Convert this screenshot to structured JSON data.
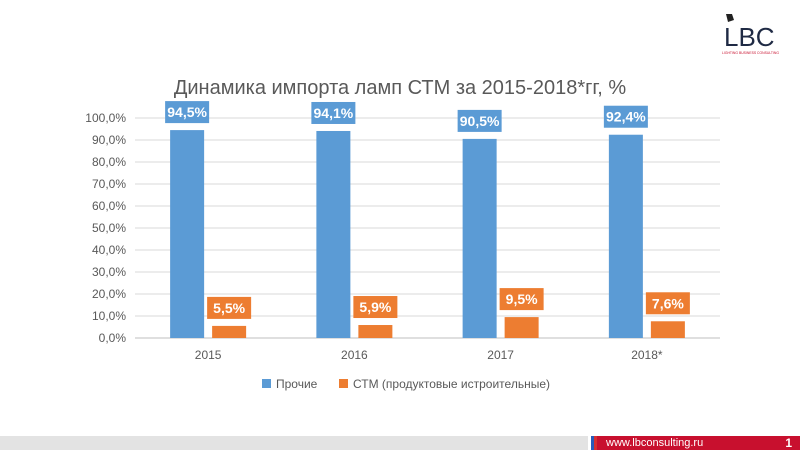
{
  "logo": {
    "text": "LBC",
    "tagline": "LIGHTING BUSINESS CONSULTING"
  },
  "footer": {
    "url": "www.lbconsulting.ru",
    "page": "1"
  },
  "colors": {
    "series1": "#5b9bd5",
    "series2": "#ed7d31",
    "footer_red": "#c8102e"
  },
  "chart_data": {
    "type": "bar",
    "title": "Динамика импорта ламп СТМ за 2015-2018*гг, %",
    "categories": [
      "2015",
      "2016",
      "2017",
      "2018*"
    ],
    "ylim": [
      0,
      100
    ],
    "yticks": [
      "0,0%",
      "10,0%",
      "20,0%",
      "30,0%",
      "40,0%",
      "50,0%",
      "60,0%",
      "70,0%",
      "80,0%",
      "90,0%",
      "100,0%"
    ],
    "grid": true,
    "legend_position": "bottom",
    "series": [
      {
        "name": "Прочие",
        "values": [
          94.5,
          94.1,
          90.5,
          92.4
        ],
        "labels": [
          "94,5%",
          "94,1%",
          "90,5%",
          "92,4%"
        ]
      },
      {
        "name": "СТМ (продуктовые истроительные)",
        "values": [
          5.5,
          5.9,
          9.5,
          7.6
        ],
        "labels": [
          "5,5%",
          "5,9%",
          "9,5%",
          "7,6%"
        ]
      }
    ]
  }
}
